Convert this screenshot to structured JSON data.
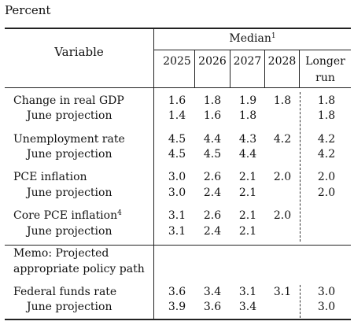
{
  "unit_label": "Percent",
  "header": {
    "variable": "Variable",
    "median": "Median",
    "median_note": "1",
    "years": [
      "2025",
      "2026",
      "2027",
      "2028"
    ],
    "longer_run_line1": "Longer",
    "longer_run_line2": "run"
  },
  "rows": {
    "gdp": {
      "label": "Change in real GDP",
      "values": [
        "1.6",
        "1.8",
        "1.9",
        "1.8",
        "1.8"
      ]
    },
    "gdp_june": {
      "label": "June projection",
      "values": [
        "1.4",
        "1.6",
        "1.8",
        "",
        "1.8"
      ]
    },
    "unemp": {
      "label": "Unemployment rate",
      "values": [
        "4.5",
        "4.4",
        "4.3",
        "4.2",
        "4.2"
      ]
    },
    "unemp_june": {
      "label": "June projection",
      "values": [
        "4.5",
        "4.5",
        "4.4",
        "",
        "4.2"
      ]
    },
    "pce": {
      "label": "PCE inflation",
      "values": [
        "3.0",
        "2.6",
        "2.1",
        "2.0",
        "2.0"
      ]
    },
    "pce_june": {
      "label": "June projection",
      "values": [
        "3.0",
        "2.4",
        "2.1",
        "",
        "2.0"
      ]
    },
    "core": {
      "label": "Core PCE inflation",
      "note": "4",
      "values": [
        "3.1",
        "2.6",
        "2.1",
        "2.0",
        ""
      ]
    },
    "core_june": {
      "label": "June projection",
      "values": [
        "3.1",
        "2.4",
        "2.1",
        "",
        ""
      ]
    },
    "memo_line1": "Memo: Projected",
    "memo_line2": "appropriate policy path",
    "ffr": {
      "label": "Federal funds rate",
      "values": [
        "3.6",
        "3.4",
        "3.1",
        "3.1",
        "3.0"
      ]
    },
    "ffr_june": {
      "label": "June projection",
      "values": [
        "3.9",
        "3.6",
        "3.4",
        "",
        "3.0"
      ]
    }
  }
}
